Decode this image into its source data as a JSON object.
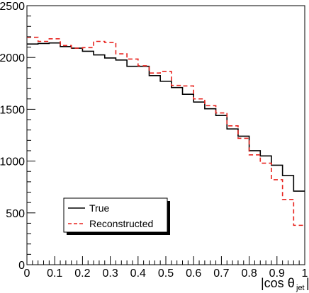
{
  "chart_data": {
    "type": "line",
    "step": true,
    "xlim": [
      0,
      1
    ],
    "ylim": [
      0,
      2500
    ],
    "bin_edges": [
      0.0,
      0.04,
      0.08,
      0.12,
      0.16,
      0.2,
      0.24,
      0.28,
      0.32,
      0.36,
      0.4,
      0.44,
      0.48,
      0.52,
      0.56,
      0.6,
      0.64,
      0.68,
      0.72,
      0.76,
      0.8,
      0.84,
      0.88,
      0.92,
      0.96,
      1.0
    ],
    "x_ticks": [
      "0",
      "0.1",
      "0.2",
      "0.3",
      "0.4",
      "0.5",
      "0.6",
      "0.7",
      "0.8",
      "0.9",
      "1"
    ],
    "y_ticks": [
      "0",
      "500",
      "1000",
      "1500",
      "2000",
      "2500"
    ],
    "xlabel": {
      "main": "|cos  θ",
      "sub": "jet",
      "close": "|"
    },
    "ylabel": "",
    "grid": false,
    "legend_position": "bottom-left",
    "series": [
      {
        "name": "True",
        "style": "solid",
        "color": "#000000",
        "values": [
          2130,
          2135,
          2140,
          2105,
          2090,
          2060,
          2025,
          1995,
          1975,
          1915,
          1915,
          1825,
          1770,
          1710,
          1645,
          1570,
          1505,
          1440,
          1310,
          1240,
          1100,
          1050,
          960,
          860,
          710
        ]
      },
      {
        "name": "Reconstructed",
        "style": "dashed",
        "color": "#e8231e",
        "values": [
          2195,
          2155,
          2180,
          2115,
          2090,
          2095,
          2155,
          2145,
          2035,
          1985,
          1920,
          1850,
          1865,
          1730,
          1725,
          1600,
          1535,
          1465,
          1340,
          1220,
          1060,
          980,
          820,
          630,
          380
        ]
      }
    ]
  }
}
